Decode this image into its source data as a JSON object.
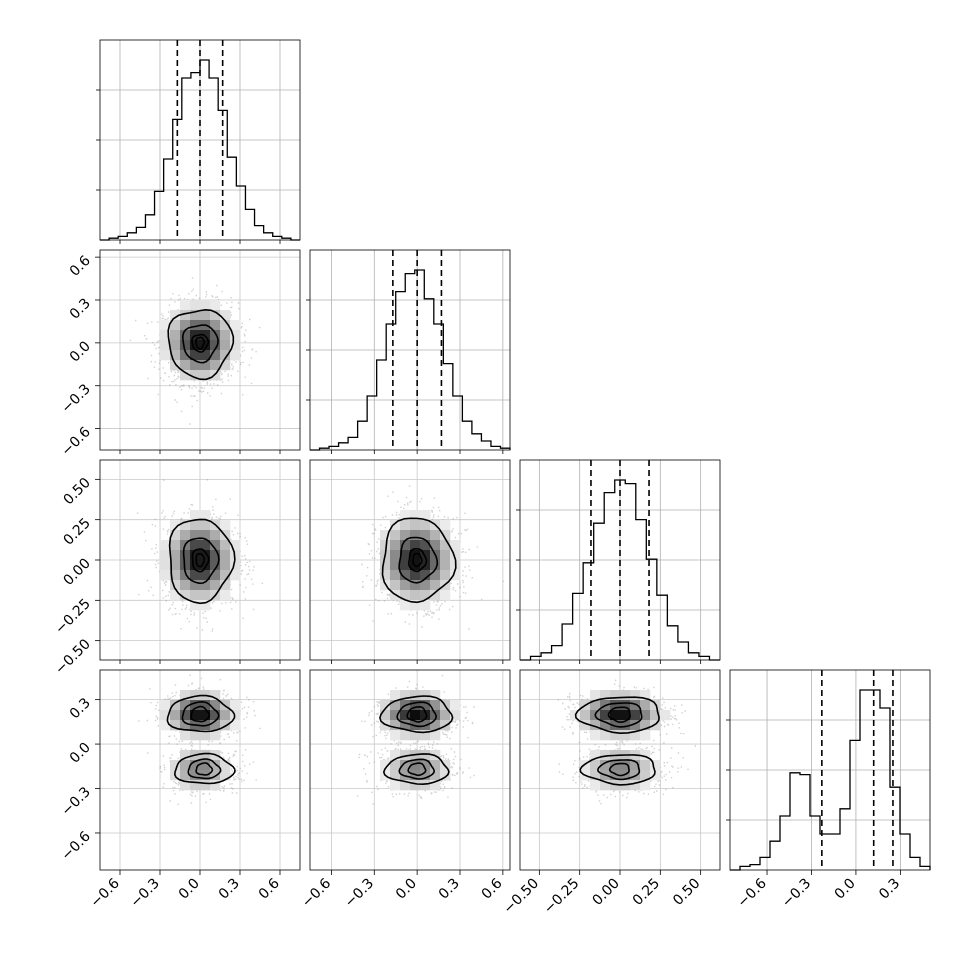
{
  "chart_data": {
    "type": "corner",
    "grid": true,
    "quantile_lines": "dashed",
    "parameters": [
      {
        "index": 0,
        "range": [
          -0.75,
          0.75
        ],
        "ticks": [
          -0.6,
          -0.3,
          0.0,
          0.3,
          0.6
        ],
        "tick_labels": [
          "−0.6",
          "−0.3",
          "0.0",
          "0.3",
          "0.6"
        ],
        "quantiles": [
          -0.17,
          0.0,
          0.17
        ],
        "histogram": [
          0.0,
          0.01,
          0.02,
          0.04,
          0.07,
          0.14,
          0.27,
          0.45,
          0.67,
          0.9,
          0.93,
          1.0,
          0.9,
          0.72,
          0.46,
          0.3,
          0.17,
          0.08,
          0.04,
          0.02,
          0.01,
          0.0
        ]
      },
      {
        "index": 1,
        "range": [
          -0.75,
          0.65
        ],
        "ticks": [
          -0.6,
          -0.3,
          0.0,
          0.3,
          0.6
        ],
        "tick_labels": [
          "−0.6",
          "−0.3",
          "0.0",
          "0.3",
          "0.6"
        ],
        "quantiles": [
          -0.17,
          0.0,
          0.17
        ],
        "histogram": [
          0.0,
          0.01,
          0.02,
          0.04,
          0.07,
          0.16,
          0.3,
          0.5,
          0.7,
          0.88,
          0.98,
          1.0,
          0.84,
          0.7,
          0.48,
          0.3,
          0.16,
          0.09,
          0.05,
          0.02,
          0.01
        ]
      },
      {
        "index": 2,
        "range": [
          -0.62,
          0.62
        ],
        "ticks": [
          -0.5,
          -0.25,
          0.0,
          0.25,
          0.5
        ],
        "tick_labels": [
          "−0.50",
          "−0.25",
          "0.00",
          "0.25",
          "0.50"
        ],
        "quantiles": [
          -0.18,
          0.0,
          0.18
        ],
        "histogram": [
          0.0,
          0.02,
          0.04,
          0.08,
          0.2,
          0.37,
          0.54,
          0.76,
          0.93,
          1.0,
          0.98,
          0.78,
          0.56,
          0.36,
          0.19,
          0.1,
          0.04,
          0.02,
          0.0
        ]
      },
      {
        "index": 3,
        "range": [
          -0.85,
          0.5
        ],
        "ticks": [
          -0.6,
          -0.3,
          0.0,
          0.3
        ],
        "tick_labels": [
          "−0.6",
          "−0.3",
          "0.0",
          "0.3"
        ],
        "quantiles": [
          -0.23,
          0.12,
          0.25
        ],
        "histogram": [
          0.0,
          0.02,
          0.03,
          0.07,
          0.16,
          0.3,
          0.54,
          0.53,
          0.3,
          0.2,
          0.2,
          0.34,
          0.72,
          1.0,
          1.0,
          0.9,
          0.46,
          0.2,
          0.07,
          0.02
        ]
      }
    ],
    "pairs": [
      {
        "x": 0,
        "y": 1,
        "peaks": [
          {
            "x": 0.0,
            "y": 0.0
          }
        ],
        "contour_levels": [
          [
            0.06,
            0.06
          ],
          [
            0.13,
            0.13
          ],
          [
            0.24,
            0.24
          ]
        ]
      },
      {
        "x": 0,
        "y": 2,
        "peaks": [
          {
            "x": 0.0,
            "y": 0.0
          }
        ],
        "contour_levels": [
          [
            0.06,
            0.07
          ],
          [
            0.13,
            0.14
          ],
          [
            0.24,
            0.26
          ]
        ]
      },
      {
        "x": 1,
        "y": 2,
        "peaks": [
          {
            "x": 0.0,
            "y": 0.0
          }
        ],
        "contour_levels": [
          [
            0.06,
            0.07
          ],
          [
            0.13,
            0.14
          ],
          [
            0.25,
            0.26
          ]
        ]
      },
      {
        "x": 0,
        "y": 3,
        "peaks": [
          {
            "x": 0.0,
            "y": 0.2
          },
          {
            "x": 0.03,
            "y": -0.17
          }
        ],
        "contour_levels": [
          [
            0.07,
            0.05
          ],
          [
            0.14,
            0.07
          ],
          [
            0.26,
            0.11
          ]
        ]
      },
      {
        "x": 1,
        "y": 3,
        "peaks": [
          {
            "x": 0.0,
            "y": 0.2
          },
          {
            "x": 0.0,
            "y": -0.17
          }
        ],
        "contour_levels": [
          [
            0.07,
            0.05
          ],
          [
            0.14,
            0.07
          ],
          [
            0.26,
            0.11
          ]
        ]
      },
      {
        "x": 2,
        "y": 3,
        "peaks": [
          {
            "x": 0.0,
            "y": 0.2
          },
          {
            "x": 0.0,
            "y": -0.17
          }
        ],
        "contour_levels": [
          [
            0.07,
            0.05
          ],
          [
            0.15,
            0.07
          ],
          [
            0.27,
            0.11
          ]
        ]
      }
    ]
  }
}
